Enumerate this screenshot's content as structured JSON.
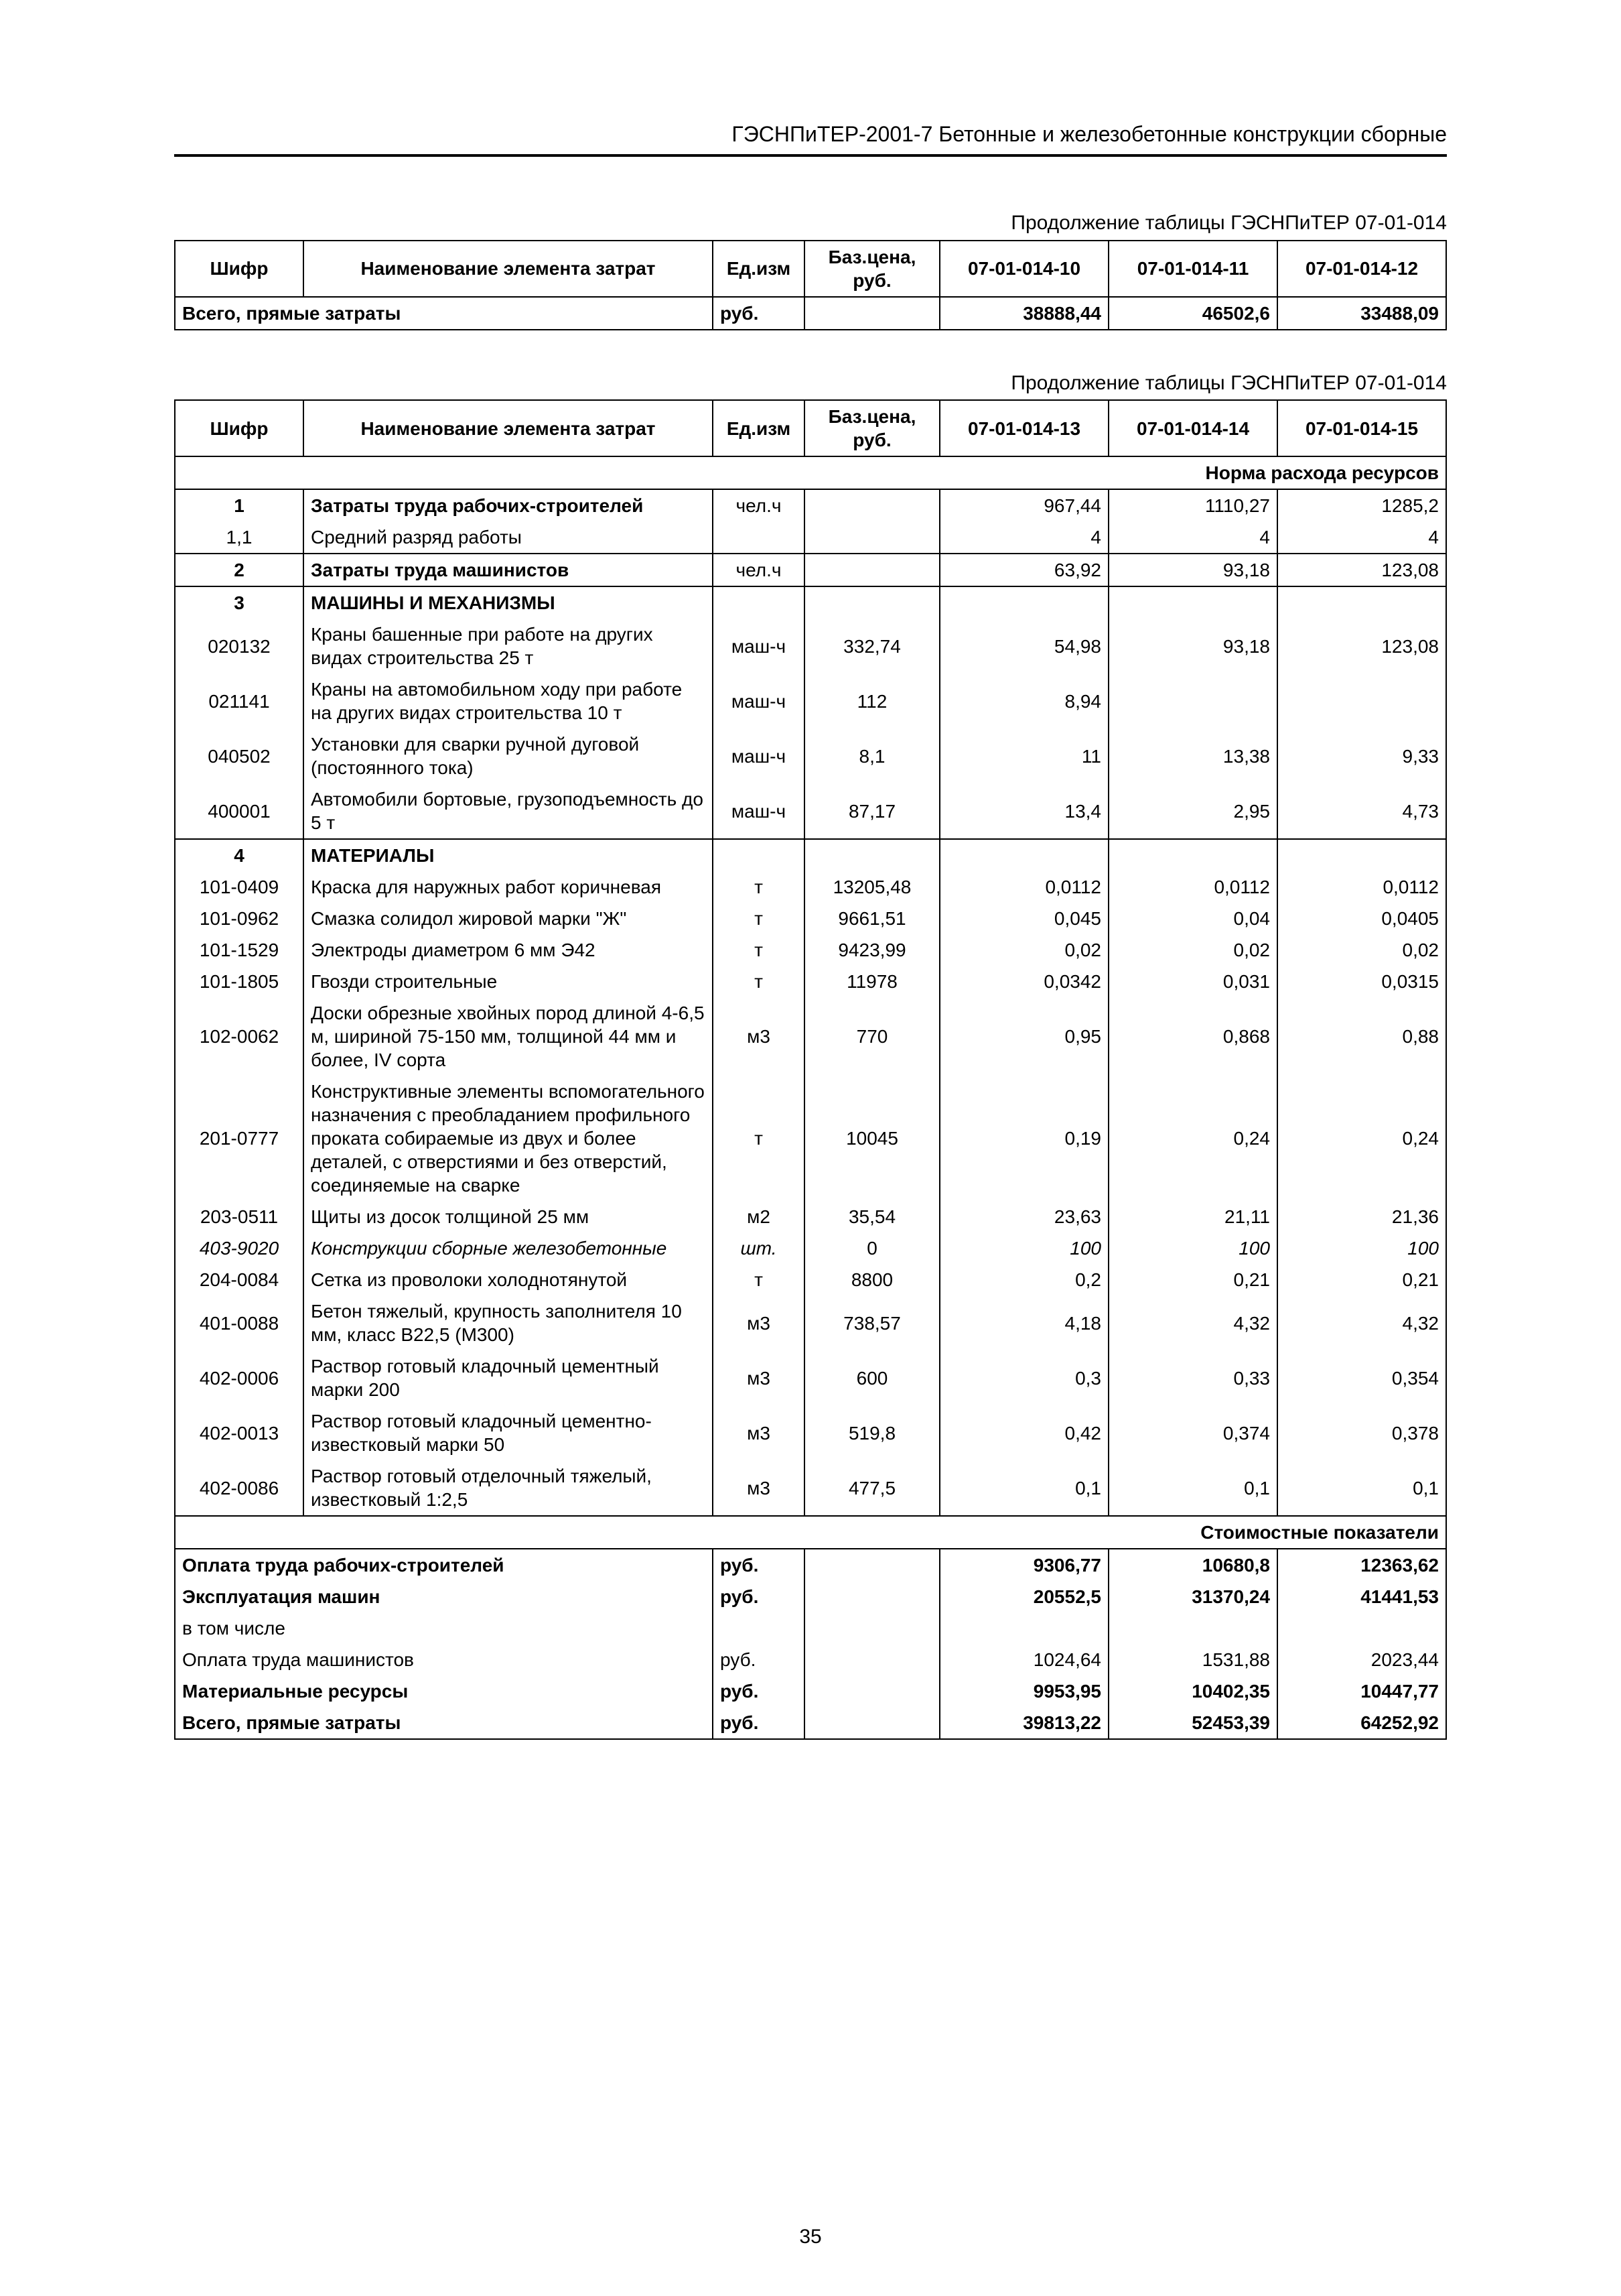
{
  "docHeader": "ГЭСНПиТЕР-2001-7 Бетонные и железобетонные конструкции сборные",
  "pageNumber": "35",
  "table1": {
    "caption": "Продолжение таблицы ГЭСНПиТЕР 07-01-014",
    "columns": {
      "shifr": "Шифр",
      "name": "Наименование элемента затрат",
      "unit": "Ед.изм",
      "price": "Баз.цена, руб.",
      "c1": "07-01-014-10",
      "c2": "07-01-014-11",
      "c3": "07-01-014-12"
    },
    "totalRow": {
      "label": "Всего, прямые затраты",
      "unit": "руб.",
      "v1": "38888,44",
      "v2": "46502,6",
      "v3": "33488,09"
    }
  },
  "table2": {
    "caption": "Продолжение таблицы ГЭСНПиТЕР 07-01-014",
    "columns": {
      "shifr": "Шифр",
      "name": "Наименование элемента затрат",
      "unit": "Ед.изм",
      "price": "Баз.цена, руб.",
      "c1": "07-01-014-13",
      "c2": "07-01-014-14",
      "c3": "07-01-014-15"
    },
    "normHeader": "Норма расхода ресурсов",
    "sectionMachines": "МАШИНЫ И МЕХАНИЗМЫ",
    "sectionMaterials": "МАТЕРИАЛЫ",
    "costHeader": "Стоимостные показатели",
    "rows": [
      {
        "shifr": "1",
        "name": "Затраты труда рабочих-строителей",
        "unit": "чел.ч",
        "price": "",
        "v1": "967,44",
        "v2": "1110,27",
        "v3": "1285,2",
        "bold": true
      },
      {
        "shifr": "1,1",
        "name": "Средний разряд работы",
        "unit": "",
        "price": "",
        "v1": "4",
        "v2": "4",
        "v3": "4"
      },
      {
        "shifr": "2",
        "name": "Затраты труда машинистов",
        "unit": "чел.ч",
        "price": "",
        "v1": "63,92",
        "v2": "93,18",
        "v3": "123,08",
        "bold": true,
        "solo": true
      },
      {
        "shifr": "3",
        "bold": true,
        "sectionKey": "sectionMachines"
      },
      {
        "shifr": "020132",
        "name": "Краны башенные при работе на других видах строительства 25 т",
        "unit": "маш-ч",
        "price": "332,74",
        "v1": "54,98",
        "v2": "93,18",
        "v3": "123,08"
      },
      {
        "shifr": "021141",
        "name": "Краны на автомобильном ходу при работе на других видах строительства 10 т",
        "unit": "маш-ч",
        "price": "112",
        "v1": "8,94",
        "v2": "",
        "v3": ""
      },
      {
        "shifr": "040502",
        "name": "Установки для сварки ручной дуговой (постоянного тока)",
        "unit": "маш-ч",
        "price": "8,1",
        "v1": "11",
        "v2": "13,38",
        "v3": "9,33"
      },
      {
        "shifr": "400001",
        "name": "Автомобили бортовые, грузоподъемность до 5 т",
        "unit": "маш-ч",
        "price": "87,17",
        "v1": "13,4",
        "v2": "2,95",
        "v3": "4,73",
        "last": true
      },
      {
        "shifr": "4",
        "bold": true,
        "sectionKey": "sectionMaterials"
      },
      {
        "shifr": "101-0409",
        "name": "Краска для наружных работ коричневая",
        "unit": "т",
        "price": "13205,48",
        "v1": "0,0112",
        "v2": "0,0112",
        "v3": "0,0112"
      },
      {
        "shifr": "101-0962",
        "name": "Смазка солидол жировой марки \"Ж\"",
        "unit": "т",
        "price": "9661,51",
        "v1": "0,045",
        "v2": "0,04",
        "v3": "0,0405"
      },
      {
        "shifr": "101-1529",
        "name": "Электроды диаметром 6 мм Э42",
        "unit": "т",
        "price": "9423,99",
        "v1": "0,02",
        "v2": "0,02",
        "v3": "0,02"
      },
      {
        "shifr": "101-1805",
        "name": "Гвозди строительные",
        "unit": "т",
        "price": "11978",
        "v1": "0,0342",
        "v2": "0,031",
        "v3": "0,0315"
      },
      {
        "shifr": "102-0062",
        "name": "Доски обрезные хвойных пород длиной 4-6,5 м, шириной 75-150 мм, толщиной 44 мм и более, IV сорта",
        "unit": "м3",
        "price": "770",
        "v1": "0,95",
        "v2": "0,868",
        "v3": "0,88"
      },
      {
        "shifr": "201-0777",
        "name": "Конструктивные элементы вспомогательного назначения с преобладанием профильного проката собираемые из двух и более деталей, с отверстиями и без отверстий, соединяемые на сварке",
        "unit": "т",
        "price": "10045",
        "v1": "0,19",
        "v2": "0,24",
        "v3": "0,24"
      },
      {
        "shifr": "203-0511",
        "name": "Щиты из досок толщиной 25 мм",
        "unit": "м2",
        "price": "35,54",
        "v1": "23,63",
        "v2": "21,11",
        "v3": "21,36"
      },
      {
        "shifr": "403-9020",
        "name": "Конструкции сборные железобетонные",
        "unit": "шт.",
        "price": "0",
        "v1": "100",
        "v2": "100",
        "v3": "100",
        "italic": true
      },
      {
        "shifr": "204-0084",
        "name": "Сетка из проволоки холоднотянутой",
        "unit": "т",
        "price": "8800",
        "v1": "0,2",
        "v2": "0,21",
        "v3": "0,21"
      },
      {
        "shifr": "401-0088",
        "name": "Бетон тяжелый, крупность заполнителя 10 мм, класс В22,5 (М300)",
        "unit": "м3",
        "price": "738,57",
        "v1": "4,18",
        "v2": "4,32",
        "v3": "4,32"
      },
      {
        "shifr": "402-0006",
        "name": "Раствор готовый кладочный цементный марки 200",
        "unit": "м3",
        "price": "600",
        "v1": "0,3",
        "v2": "0,33",
        "v3": "0,354"
      },
      {
        "shifr": "402-0013",
        "name": "Раствор готовый кладочный цементно-известковый марки 50",
        "unit": "м3",
        "price": "519,8",
        "v1": "0,42",
        "v2": "0,374",
        "v3": "0,378"
      },
      {
        "shifr": "402-0086",
        "name": "Раствор готовый отделочный тяжелый, известковый 1:2,5",
        "unit": "м3",
        "price": "477,5",
        "v1": "0,1",
        "v2": "0,1",
        "v3": "0,1",
        "last": true
      }
    ],
    "costRows": [
      {
        "label": "Оплата труда рабочих-строителей",
        "unit": "руб.",
        "v1": "9306,77",
        "v2": "10680,8",
        "v3": "12363,62",
        "bold": true
      },
      {
        "label": "Эксплуатация машин",
        "unit": "руб.",
        "v1": "20552,5",
        "v2": "31370,24",
        "v3": "41441,53",
        "bold": true
      },
      {
        "label": "в том числе"
      },
      {
        "label": "Оплата труда машинистов",
        "unit": "руб.",
        "v1": "1024,64",
        "v2": "1531,88",
        "v3": "2023,44"
      },
      {
        "label": "Материальные ресурсы",
        "unit": "руб.",
        "v1": "9953,95",
        "v2": "10402,35",
        "v3": "10447,77",
        "bold": true
      },
      {
        "label": "Всего, прямые затраты",
        "unit": "руб.",
        "v1": "39813,22",
        "v2": "52453,39",
        "v3": "64252,92",
        "bold": true,
        "last": true
      }
    ]
  }
}
